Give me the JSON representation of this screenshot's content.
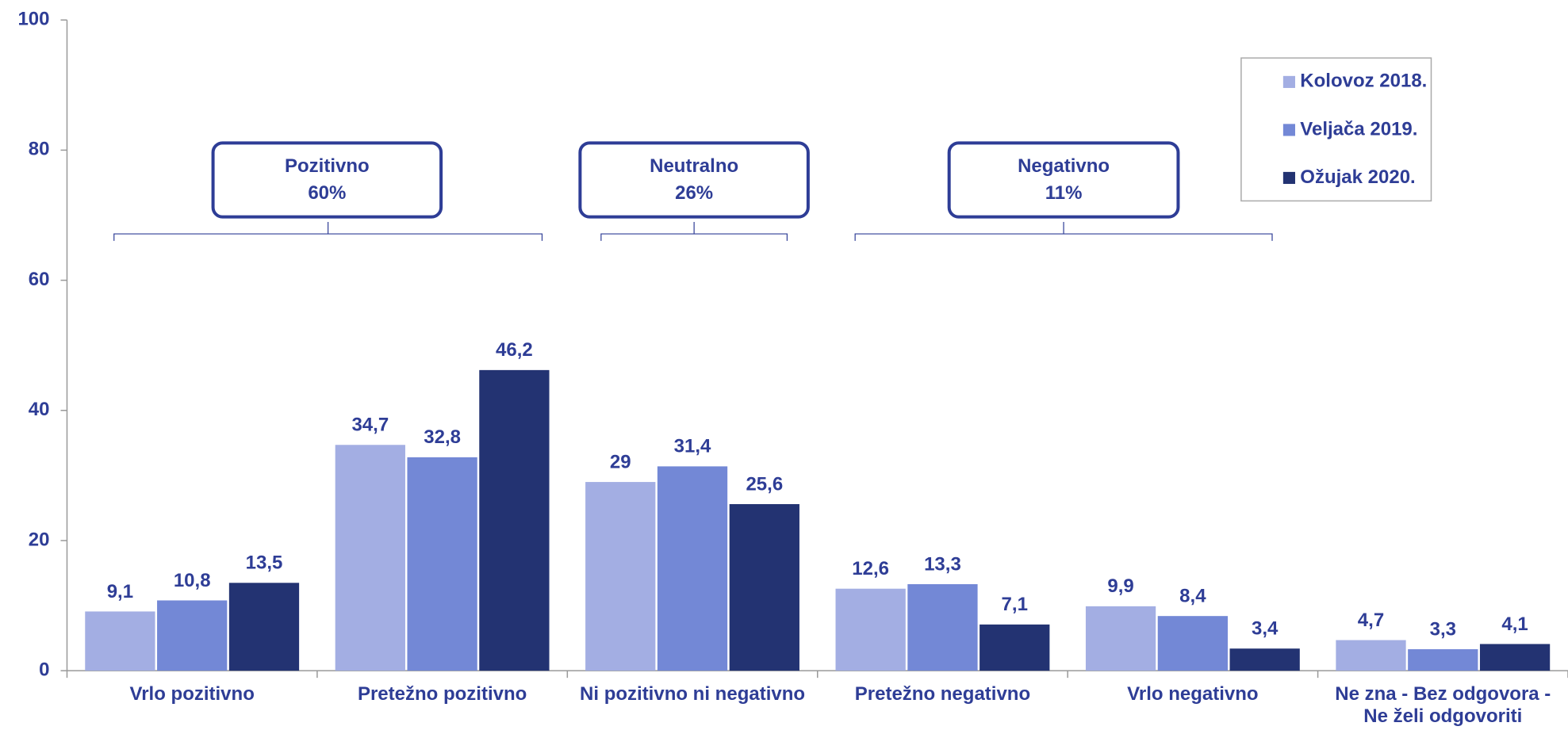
{
  "chart_data": {
    "type": "bar",
    "categories": [
      "Vrlo pozitivno",
      "Pretežno pozitivno",
      "Ni pozitivno ni negativno",
      "Pretežno negativno",
      "Vrlo negativno",
      "Ne zna - Bez odgovora - Ne želi odgovoriti"
    ],
    "series": [
      {
        "name": "Kolovoz 2018.",
        "color": "#a3aee3",
        "values": [
          9.1,
          34.7,
          29,
          12.6,
          9.9,
          4.7
        ],
        "value_labels": [
          "9,1",
          "34,7",
          "29",
          "12,6",
          "9,9",
          "4,7"
        ]
      },
      {
        "name": "Veljača 2019.",
        "color": "#7388d6",
        "values": [
          10.8,
          32.8,
          31.4,
          13.3,
          8.4,
          3.3
        ],
        "value_labels": [
          "10,8",
          "32,8",
          "31,4",
          "13,3",
          "8,4",
          "3,3"
        ]
      },
      {
        "name": "Ožujak 2020.",
        "color": "#233372",
        "values": [
          13.5,
          46.2,
          25.6,
          7.1,
          3.4,
          4.1
        ],
        "value_labels": [
          "13,5",
          "46,2",
          "25,6",
          "7,1",
          "3,4",
          "4,1"
        ]
      }
    ],
    "ylim": [
      0,
      100
    ],
    "yticks": [
      0,
      20,
      40,
      60,
      80,
      100
    ],
    "legend": "top-right",
    "annotations": [
      {
        "title": "Pozitivno",
        "label": "60%"
      },
      {
        "title": "Neutralno",
        "label": "26%"
      },
      {
        "title": "Negativno",
        "label": "11%"
      }
    ]
  }
}
